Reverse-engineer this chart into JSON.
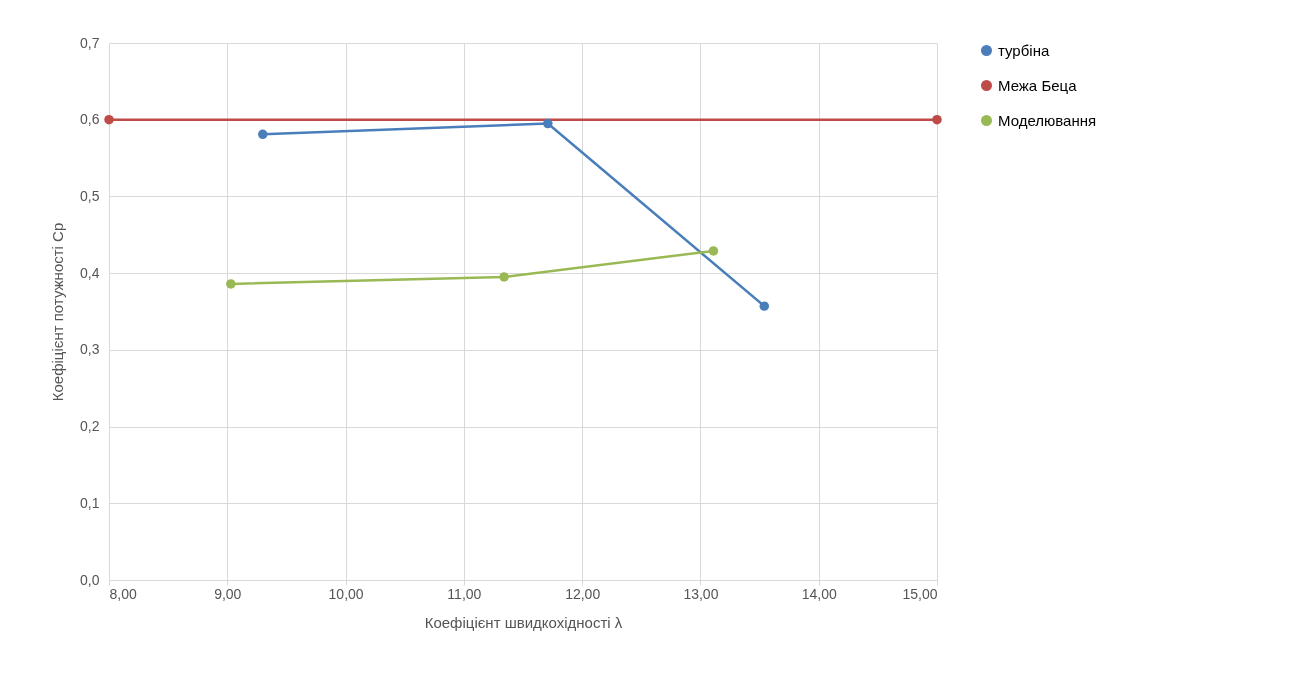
{
  "chart_data": {
    "type": "line",
    "xlabel": "Коефіцієнт швидкохідності λ",
    "ylabel": "Коефіцієнт потужності Cp",
    "xlim": [
      8,
      15
    ],
    "ylim": [
      0,
      0.7
    ],
    "xticks": [
      {
        "value": 8,
        "label": "8,00"
      },
      {
        "value": 9,
        "label": "9,00"
      },
      {
        "value": 10,
        "label": "10,00"
      },
      {
        "value": 11,
        "label": "11,00"
      },
      {
        "value": 12,
        "label": "12,00"
      },
      {
        "value": 13,
        "label": "13,00"
      },
      {
        "value": 14,
        "label": "14,00"
      },
      {
        "value": 15,
        "label": "15,00"
      }
    ],
    "yticks": [
      {
        "value": 0,
        "label": "0,0"
      },
      {
        "value": 0.1,
        "label": "0,1"
      },
      {
        "value": 0.2,
        "label": "0,2"
      },
      {
        "value": 0.3,
        "label": "0,3"
      },
      {
        "value": 0.4,
        "label": "0,4"
      },
      {
        "value": 0.5,
        "label": "0,5"
      },
      {
        "value": 0.6,
        "label": "0,6"
      },
      {
        "value": 0.7,
        "label": "0,7"
      }
    ],
    "grid": true,
    "legend": "right",
    "marker": "circle",
    "line_style": "solid",
    "series": [
      {
        "name": "турбіна",
        "color": "#4a7ebb",
        "x": [
          9.3,
          11.71,
          13.54
        ],
        "values": [
          0.581,
          0.595,
          0.357
        ]
      },
      {
        "name": "Межа Беца",
        "color": "#be4b48",
        "x": [
          8,
          15
        ],
        "values": [
          0.6,
          0.6
        ]
      },
      {
        "name": "Моделювання",
        "color": "#98b954",
        "x": [
          9.03,
          11.34,
          13.11
        ],
        "values": [
          0.386,
          0.395,
          0.429
        ]
      }
    ]
  }
}
